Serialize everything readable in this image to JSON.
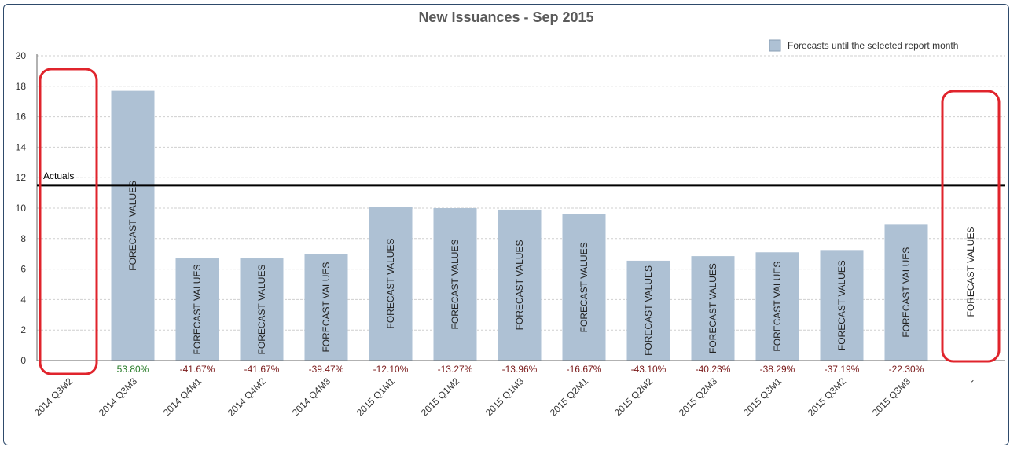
{
  "chart_data": {
    "type": "bar",
    "title": "New Issuances - Sep 2015",
    "xlabel": "",
    "ylabel": "",
    "ylim": [
      0,
      20
    ],
    "yticks": [
      "0",
      "2",
      "4",
      "6",
      "8",
      "10",
      "12",
      "14",
      "16",
      "18",
      "20"
    ],
    "grid": true,
    "legend": {
      "placement": "top-right",
      "label": "Forecasts until the selected report month"
    },
    "categories": [
      "2014 Q3M2",
      "2014 Q3M3",
      "2014 Q4M1",
      "2014 Q4M2",
      "2014 Q4M3",
      "2015 Q1M1",
      "2015 Q1M2",
      "2015 Q1M3",
      "2015 Q2M1",
      "2015 Q2M2",
      "2015 Q2M3",
      "2015 Q3M1",
      "2015 Q3M2",
      "2015 Q3M3",
      "-"
    ],
    "values": [
      null,
      17.7,
      6.7,
      6.7,
      7.0,
      10.1,
      10.0,
      9.9,
      9.6,
      6.55,
      6.85,
      7.1,
      7.25,
      8.95,
      null
    ],
    "bar_labels": [
      "",
      "FORECAST VALUES",
      "FORECAST VALUES",
      "FORECAST VALUES",
      "FORECAST VALUES",
      "FORECAST VALUES",
      "FORECAST VALUES",
      "FORECAST VALUES",
      "FORECAST VALUES",
      "FORECAST VALUES",
      "FORECAST VALUES",
      "FORECAST VALUES",
      "FORECAST VALUES",
      "FORECAST VALUES",
      "FORECAST VALUES"
    ],
    "pct_labels": [
      "",
      "53.80%",
      "-41.67%",
      "-41.67%",
      "-39.47%",
      "-12.10%",
      "-13.27%",
      "-13.96%",
      "-16.67%",
      "-43.10%",
      "-40.23%",
      "-38.29%",
      "-37.19%",
      "-22.30%",
      ""
    ],
    "reference_line": {
      "label": "Actuals",
      "value": 11.5
    },
    "highlight_boxes": [
      0,
      14
    ],
    "colors": {
      "bar": "#aec1d4",
      "reference": "#000000",
      "highlight": "#e0242c",
      "positive": "#2a7d2a",
      "negative": "#7a1a1a",
      "grid": "#cfcfcf"
    }
  }
}
